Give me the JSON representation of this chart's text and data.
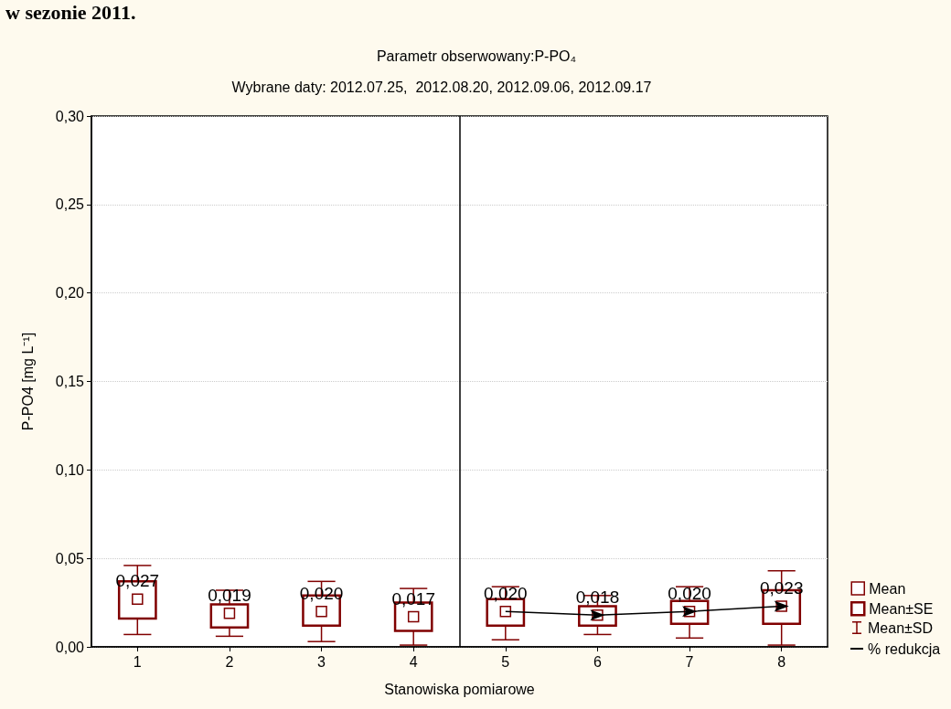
{
  "chart_data": {
    "type": "scatter",
    "title": "Parametr obserwowany:P-PO₄",
    "subtitle": "Wybrane daty: 2012.07.25,  2012.08.20, 2012.09.06, 2012.09.17",
    "xlabel": "Stanowiska pomiarowe",
    "ylabel": "P-PO4 [mg L⁻¹]",
    "annotations": [
      "w sezonie 2011.",
      "Mean±SD"
    ],
    "x": [
      1,
      2,
      3,
      4,
      5,
      6,
      7,
      8
    ],
    "xlim": [
      0.5,
      8.5
    ],
    "xticks": [
      1,
      2,
      3,
      4,
      5,
      6,
      7,
      8
    ],
    "ylim": [
      0,
      0.3
    ],
    "yticks": [
      {
        "value": 0,
        "label": "0,00"
      },
      {
        "value": 0.05,
        "label": "0,05"
      },
      {
        "value": 0.1,
        "label": "0,10"
      },
      {
        "value": 0.15,
        "label": "0,15"
      },
      {
        "value": 0.2,
        "label": "0,20"
      },
      {
        "value": 0.25,
        "label": "0,25"
      },
      {
        "value": 0.3,
        "label": "0,30"
      }
    ],
    "grid": "y",
    "legend": "bottom right",
    "ref_lines": [
      {
        "axis": "x",
        "value": 4.5,
        "color": "#000000"
      }
    ],
    "series": [
      {
        "name": "Mean",
        "marker": "square",
        "color": "#800000",
        "values": [
          0.027,
          0.019,
          0.02,
          0.017,
          0.02,
          0.018,
          0.02,
          0.023
        ],
        "value_labels": [
          "0,027",
          "0,019",
          "0,020",
          "0,017",
          "0,020",
          "0,018",
          "0,020",
          "0,023"
        ],
        "errors": [
          [
            0.007,
            0.046
          ],
          [
            0.006,
            0.032
          ],
          [
            0.003,
            0.037
          ],
          [
            0.001,
            0.033
          ],
          [
            0.004,
            0.034
          ],
          [
            0.007,
            0.029
          ],
          [
            0.005,
            0.034
          ],
          [
            0.001,
            0.043
          ]
        ]
      },
      {
        "name": "Mean±SE",
        "type": "bar",
        "color": "#800000",
        "base": [
          0.016,
          0.011,
          0.012,
          0.009,
          0.012,
          0.012,
          0.013,
          0.013
        ],
        "values": [
          0.021,
          0.013,
          0.017,
          0.016,
          0.015,
          0.011,
          0.013,
          0.019
        ]
      },
      {
        "name": "% redukcja",
        "type": "line",
        "color": "#000000",
        "x": [
          5,
          6,
          7,
          8
        ],
        "values": [
          0.02,
          0.018,
          0.02,
          0.023
        ]
      }
    ]
  }
}
